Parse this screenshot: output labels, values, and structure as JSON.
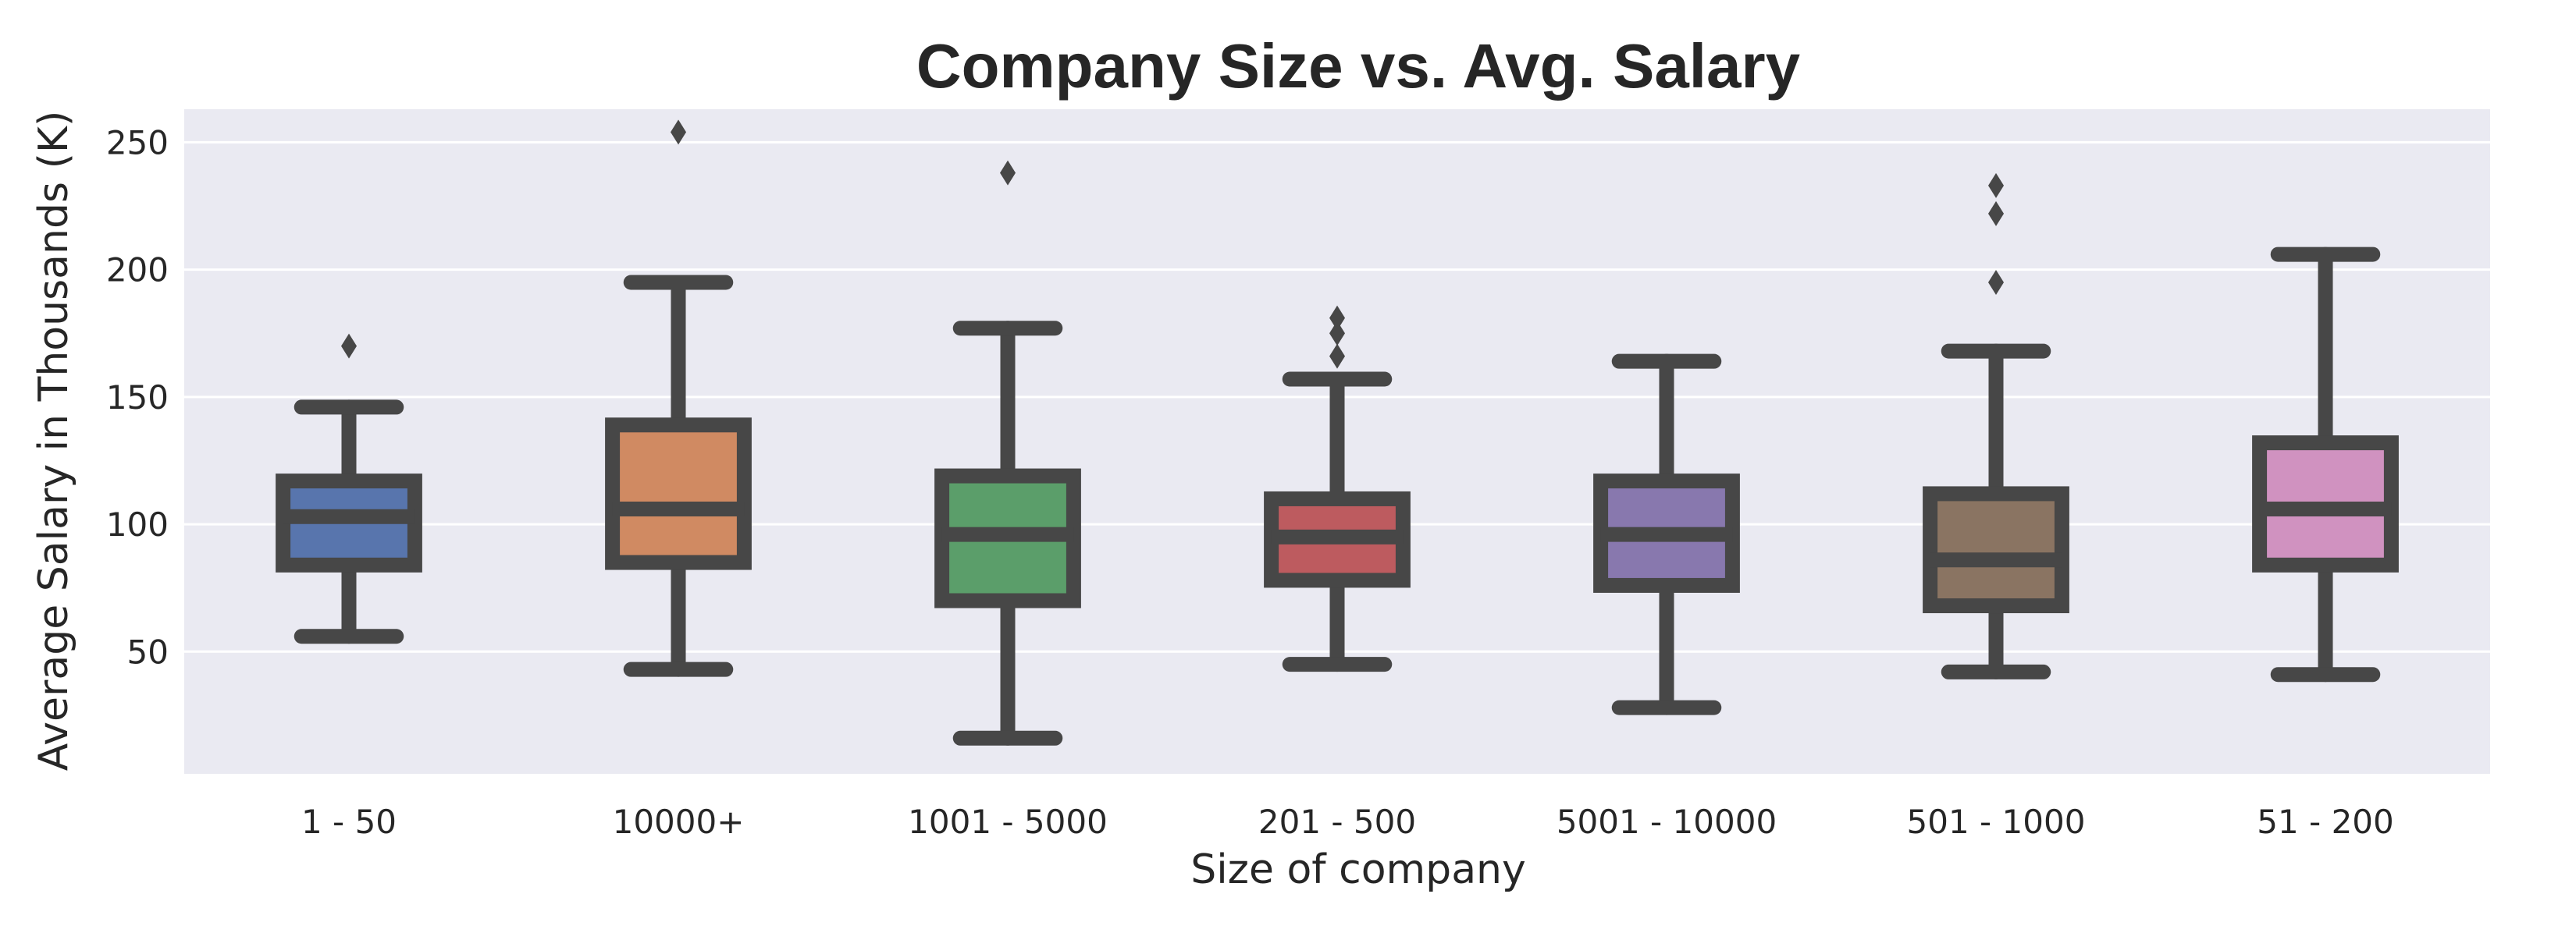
{
  "chart_data": {
    "type": "box",
    "title": "Company Size vs. Avg. Salary",
    "xlabel": "Size of company",
    "ylabel": "Average Salary in Thousands (K)",
    "ylim": [
      2,
      263
    ],
    "yticks": [
      50,
      100,
      150,
      200,
      250
    ],
    "grid": true,
    "background": "#eaeaf2",
    "grid_color": "#ffffff",
    "line_color": "#474747",
    "categories": [
      "1 - 50",
      "10000+",
      "1001 - 5000",
      "201 - 500",
      "5001 - 10000",
      "501 - 1000",
      "51 - 200"
    ],
    "boxes": [
      {
        "category": "1 - 50",
        "whisker_low": 56,
        "q1": 84,
        "median": 103,
        "q3": 117,
        "whisker_high": 146,
        "outliers": [
          170
        ],
        "color": "#5875ad"
      },
      {
        "category": "10000+",
        "whisker_low": 43,
        "q1": 85,
        "median": 106,
        "q3": 139,
        "whisker_high": 195,
        "outliers": [
          254
        ],
        "color": "#d08a62"
      },
      {
        "category": "1001 - 5000",
        "whisker_low": 16,
        "q1": 70,
        "median": 96,
        "q3": 119,
        "whisker_high": 177,
        "outliers": [
          238
        ],
        "color": "#5b9e6a"
      },
      {
        "category": "201 - 500",
        "whisker_low": 45,
        "q1": 78,
        "median": 95,
        "q3": 110,
        "whisker_high": 157,
        "outliers": [
          166,
          175,
          181
        ],
        "color": "#bd5b5f"
      },
      {
        "category": "5001 - 10000",
        "whisker_low": 28,
        "q1": 76,
        "median": 96,
        "q3": 117,
        "whisker_high": 164,
        "outliers": [],
        "color": "#8878ae"
      },
      {
        "category": "501 - 1000",
        "whisker_low": 42,
        "q1": 68,
        "median": 86,
        "q3": 112,
        "whisker_high": 168,
        "outliers": [
          195,
          222,
          233
        ],
        "color": "#8a7462"
      },
      {
        "category": "51 - 200",
        "whisker_low": 41,
        "q1": 84,
        "median": 106,
        "q3": 132,
        "whisker_high": 206,
        "outliers": [],
        "color": "#d092c0"
      }
    ]
  }
}
